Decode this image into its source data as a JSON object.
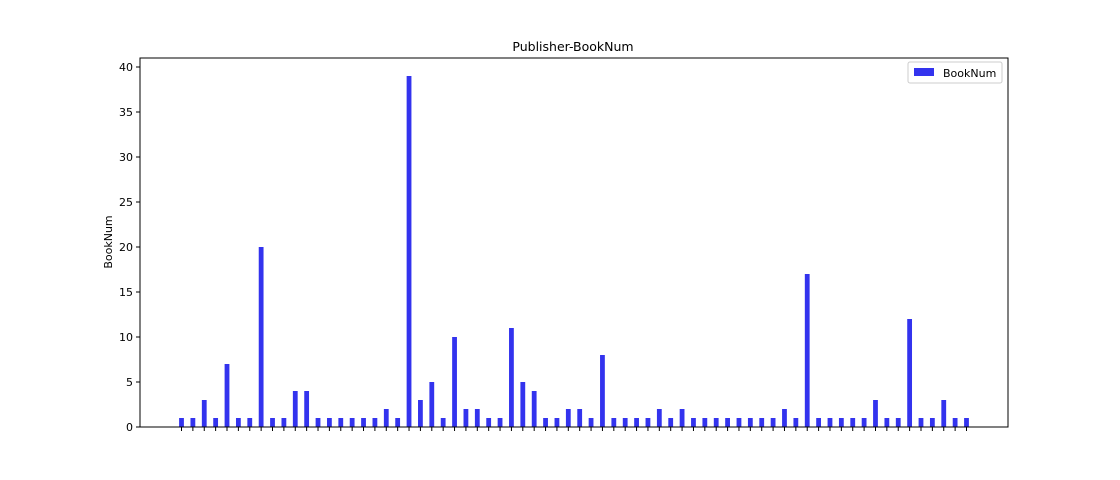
{
  "chart_data": {
    "type": "bar",
    "title": "Publisher-BookNum",
    "xlabel": "",
    "ylabel": "BookNum",
    "ylim": [
      0,
      41
    ],
    "yticks": [
      0,
      5,
      10,
      15,
      20,
      25,
      30,
      35,
      40
    ],
    "legend_position": "top-right",
    "grid": false,
    "series": [
      {
        "name": "BookNum",
        "color": "#3333ee",
        "values": [
          1,
          1,
          3,
          1,
          7,
          1,
          1,
          20,
          1,
          1,
          4,
          4,
          1,
          1,
          1,
          1,
          1,
          1,
          2,
          1,
          39,
          3,
          5,
          1,
          10,
          2,
          2,
          1,
          1,
          11,
          5,
          4,
          1,
          1,
          2,
          2,
          1,
          8,
          1,
          1,
          1,
          1,
          2,
          1,
          2,
          1,
          1,
          1,
          1,
          1,
          1,
          1,
          1,
          2,
          1,
          17,
          1,
          1,
          1,
          1,
          1,
          3,
          1,
          1,
          12,
          1,
          1,
          3,
          1,
          1
        ]
      }
    ],
    "categories": [
      "",
      "",
      "",
      "",
      "",
      "",
      "",
      "",
      "",
      "",
      "",
      "",
      "",
      "",
      "",
      "",
      "",
      "",
      "",
      "",
      "",
      "",
      "",
      "",
      "",
      "",
      "",
      "",
      "",
      "",
      "",
      "",
      "",
      "",
      "",
      "",
      "",
      "",
      "",
      "",
      "",
      "",
      "",
      "",
      "",
      "",
      "",
      "",
      "",
      "",
      "",
      "",
      "",
      "",
      "",
      "",
      "",
      "",
      "",
      "",
      "",
      "",
      "",
      "",
      "",
      "",
      "",
      "",
      "",
      ""
    ]
  }
}
